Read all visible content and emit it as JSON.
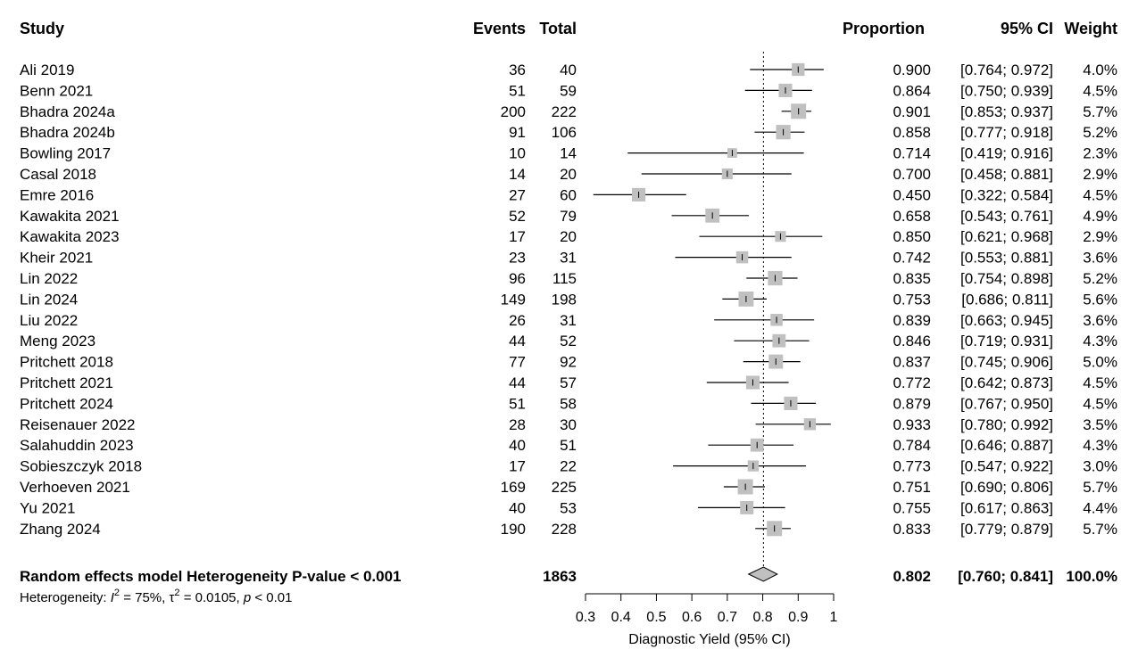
{
  "chart_data": {
    "type": "forest",
    "headers": {
      "study": "Study",
      "events": "Events",
      "total": "Total",
      "proportion": "Proportion",
      "ci": "95% CI",
      "weight": "Weight"
    },
    "studies": [
      {
        "study": "Ali 2019",
        "events": "36",
        "total": "40",
        "prop": 0.9,
        "lo": 0.764,
        "hi": 0.972,
        "prop_text": "0.900",
        "ci_text": "[0.764; 0.972]",
        "weight": "4.0%",
        "w": 4.0
      },
      {
        "study": "Benn 2021",
        "events": "51",
        "total": "59",
        "prop": 0.864,
        "lo": 0.75,
        "hi": 0.939,
        "prop_text": "0.864",
        "ci_text": "[0.750; 0.939]",
        "weight": "4.5%",
        "w": 4.5
      },
      {
        "study": "Bhadra 2024a",
        "events": "200",
        "total": "222",
        "prop": 0.901,
        "lo": 0.853,
        "hi": 0.937,
        "prop_text": "0.901",
        "ci_text": "[0.853; 0.937]",
        "weight": "5.7%",
        "w": 5.7
      },
      {
        "study": "Bhadra 2024b",
        "events": "91",
        "total": "106",
        "prop": 0.858,
        "lo": 0.777,
        "hi": 0.918,
        "prop_text": "0.858",
        "ci_text": "[0.777; 0.918]",
        "weight": "5.2%",
        "w": 5.2
      },
      {
        "study": "Bowling 2017",
        "events": "10",
        "total": "14",
        "prop": 0.714,
        "lo": 0.419,
        "hi": 0.916,
        "prop_text": "0.714",
        "ci_text": "[0.419; 0.916]",
        "weight": "2.3%",
        "w": 2.3
      },
      {
        "study": "Casal 2018",
        "events": "14",
        "total": "20",
        "prop": 0.7,
        "lo": 0.458,
        "hi": 0.881,
        "prop_text": "0.700",
        "ci_text": "[0.458; 0.881]",
        "weight": "2.9%",
        "w": 2.9
      },
      {
        "study": "Emre 2016",
        "events": "27",
        "total": "60",
        "prop": 0.45,
        "lo": 0.322,
        "hi": 0.584,
        "prop_text": "0.450",
        "ci_text": "[0.322; 0.584]",
        "weight": "4.5%",
        "w": 4.5
      },
      {
        "study": "Kawakita 2021",
        "events": "52",
        "total": "79",
        "prop": 0.658,
        "lo": 0.543,
        "hi": 0.761,
        "prop_text": "0.658",
        "ci_text": "[0.543; 0.761]",
        "weight": "4.9%",
        "w": 4.9
      },
      {
        "study": "Kawakita 2023",
        "events": "17",
        "total": "20",
        "prop": 0.85,
        "lo": 0.621,
        "hi": 0.968,
        "prop_text": "0.850",
        "ci_text": "[0.621; 0.968]",
        "weight": "2.9%",
        "w": 2.9
      },
      {
        "study": "Kheir 2021",
        "events": "23",
        "total": "31",
        "prop": 0.742,
        "lo": 0.553,
        "hi": 0.881,
        "prop_text": "0.742",
        "ci_text": "[0.553; 0.881]",
        "weight": "3.6%",
        "w": 3.6
      },
      {
        "study": "Lin 2022",
        "events": "96",
        "total": "115",
        "prop": 0.835,
        "lo": 0.754,
        "hi": 0.898,
        "prop_text": "0.835",
        "ci_text": "[0.754; 0.898]",
        "weight": "5.2%",
        "w": 5.2
      },
      {
        "study": "Lin 2024",
        "events": "149",
        "total": "198",
        "prop": 0.753,
        "lo": 0.686,
        "hi": 0.811,
        "prop_text": "0.753",
        "ci_text": "[0.686; 0.811]",
        "weight": "5.6%",
        "w": 5.6
      },
      {
        "study": "Liu 2022",
        "events": "26",
        "total": "31",
        "prop": 0.839,
        "lo": 0.663,
        "hi": 0.945,
        "prop_text": "0.839",
        "ci_text": "[0.663; 0.945]",
        "weight": "3.6%",
        "w": 3.6
      },
      {
        "study": "Meng 2023",
        "events": "44",
        "total": "52",
        "prop": 0.846,
        "lo": 0.719,
        "hi": 0.931,
        "prop_text": "0.846",
        "ci_text": "[0.719; 0.931]",
        "weight": "4.3%",
        "w": 4.3
      },
      {
        "study": "Pritchett 2018",
        "events": "77",
        "total": "92",
        "prop": 0.837,
        "lo": 0.745,
        "hi": 0.906,
        "prop_text": "0.837",
        "ci_text": "[0.745; 0.906]",
        "weight": "5.0%",
        "w": 5.0
      },
      {
        "study": "Pritchett 2021",
        "events": "44",
        "total": "57",
        "prop": 0.772,
        "lo": 0.642,
        "hi": 0.873,
        "prop_text": "0.772",
        "ci_text": "[0.642; 0.873]",
        "weight": "4.5%",
        "w": 4.5
      },
      {
        "study": "Pritchett 2024",
        "events": "51",
        "total": "58",
        "prop": 0.879,
        "lo": 0.767,
        "hi": 0.95,
        "prop_text": "0.879",
        "ci_text": "[0.767; 0.950]",
        "weight": "4.5%",
        "w": 4.5
      },
      {
        "study": "Reisenauer 2022",
        "events": "28",
        "total": "30",
        "prop": 0.933,
        "lo": 0.78,
        "hi": 0.992,
        "prop_text": "0.933",
        "ci_text": "[0.780; 0.992]",
        "weight": "3.5%",
        "w": 3.5
      },
      {
        "study": "Salahuddin 2023",
        "events": "40",
        "total": "51",
        "prop": 0.784,
        "lo": 0.646,
        "hi": 0.887,
        "prop_text": "0.784",
        "ci_text": "[0.646; 0.887]",
        "weight": "4.3%",
        "w": 4.3
      },
      {
        "study": "Sobieszczyk 2018",
        "events": "17",
        "total": "22",
        "prop": 0.773,
        "lo": 0.547,
        "hi": 0.922,
        "prop_text": "0.773",
        "ci_text": "[0.547; 0.922]",
        "weight": "3.0%",
        "w": 3.0
      },
      {
        "study": "Verhoeven 2021",
        "events": "169",
        "total": "225",
        "prop": 0.751,
        "lo": 0.69,
        "hi": 0.806,
        "prop_text": "0.751",
        "ci_text": "[0.690; 0.806]",
        "weight": "5.7%",
        "w": 5.7
      },
      {
        "study": "Yu 2021",
        "events": "40",
        "total": "53",
        "prop": 0.755,
        "lo": 0.617,
        "hi": 0.863,
        "prop_text": "0.755",
        "ci_text": "[0.617; 0.863]",
        "weight": "4.4%",
        "w": 4.4
      },
      {
        "study": "Zhang 2024",
        "events": "190",
        "total": "228",
        "prop": 0.833,
        "lo": 0.779,
        "hi": 0.879,
        "prop_text": "0.833",
        "ci_text": "[0.779; 0.879]",
        "weight": "5.7%",
        "w": 5.7
      }
    ],
    "pooled": {
      "label": "Random effects model Heterogeneity P-value < 0.001",
      "total": "1863",
      "prop": 0.802,
      "lo": 0.76,
      "hi": 0.841,
      "prop_text": "0.802",
      "ci_text": "[0.760; 0.841]",
      "weight": "100.0%"
    },
    "heterogeneity": {
      "prefix": "Heterogeneity: ",
      "i2_symbol": "I",
      "i2_exp": "2",
      "i2_value": " = 75%, ",
      "tau_symbol": "τ",
      "tau_exp": "2",
      "tau_value": " = 0.0105, ",
      "p_symbol": "p",
      "p_value": " < 0.01"
    },
    "reference_line": 0.802,
    "xlim": [
      0.3,
      1.0
    ],
    "x_ticks": [
      0.3,
      0.4,
      0.5,
      0.6,
      0.7,
      0.8,
      0.9,
      1.0
    ],
    "x_tick_labels": [
      "0.3",
      "0.4",
      "0.5",
      "0.6",
      "0.7",
      "0.8",
      "0.9",
      "1"
    ],
    "xlabel": "Diagnostic Yield (95% CI)",
    "colors": {
      "square": "#c0c0c0",
      "diamond": "#c0c0c0",
      "line": "#000000"
    }
  }
}
